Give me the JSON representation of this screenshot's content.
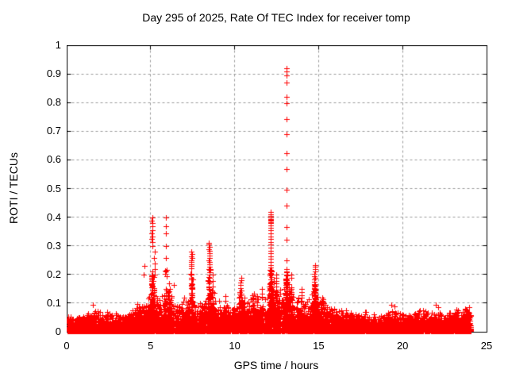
{
  "window": {
    "background": "#ffffff",
    "foreground": "#000000"
  },
  "chart_data": {
    "type": "scatter",
    "title": "Day 295 of 2025, Rate Of TEC Index for receiver tomp",
    "xlabel": "GPS time / hours",
    "ylabel": "ROTI / TECUs",
    "xlim": [
      0,
      25
    ],
    "ylim": [
      0,
      1
    ],
    "xticks": [
      0,
      5,
      10,
      15,
      20,
      25
    ],
    "xtick_labels": [
      "0",
      "5",
      "10",
      "15",
      "20",
      "25"
    ],
    "yticks": [
      0,
      0.1,
      0.2,
      0.3,
      0.4,
      0.5,
      0.6,
      0.7,
      0.8,
      0.9,
      1
    ],
    "ytick_labels": [
      "0",
      "0.1",
      "0.2",
      "0.3",
      "0.4",
      "0.5",
      "0.6",
      "0.7",
      "0.8",
      "0.9",
      "1"
    ],
    "grid": true,
    "grid_color": "#9a9a9a",
    "axis_color": "#000000",
    "legend": "none",
    "marker": {
      "shape": "plus",
      "color": "#ff0000",
      "size": 7
    },
    "data_time_range_hours": [
      0,
      24.05
    ],
    "noise": {
      "seed": 7,
      "points_per_hour": 320,
      "floor": 0.003,
      "envelope": [
        [
          0,
          0.05
        ],
        [
          0.3,
          0.035
        ],
        [
          0.8,
          0.045
        ],
        [
          1.2,
          0.055
        ],
        [
          1.6,
          0.065
        ],
        [
          2.0,
          0.05
        ],
        [
          2.4,
          0.055
        ],
        [
          2.8,
          0.05
        ],
        [
          3.2,
          0.045
        ],
        [
          3.6,
          0.055
        ],
        [
          4.0,
          0.065
        ],
        [
          4.4,
          0.075
        ],
        [
          4.8,
          0.09
        ],
        [
          5.1,
          0.13
        ],
        [
          5.4,
          0.09
        ],
        [
          5.7,
          0.1
        ],
        [
          6.0,
          0.12
        ],
        [
          6.3,
          0.09
        ],
        [
          6.6,
          0.08
        ],
        [
          7.0,
          0.085
        ],
        [
          7.4,
          0.1
        ],
        [
          7.7,
          0.075
        ],
        [
          8.0,
          0.08
        ],
        [
          8.3,
          0.1
        ],
        [
          8.6,
          0.12
        ],
        [
          9.0,
          0.075
        ],
        [
          9.4,
          0.1
        ],
        [
          9.7,
          0.06
        ],
        [
          10.0,
          0.07
        ],
        [
          10.35,
          0.11
        ],
        [
          10.7,
          0.08
        ],
        [
          11.0,
          0.1
        ],
        [
          11.3,
          0.09
        ],
        [
          11.6,
          0.11
        ],
        [
          11.9,
          0.1
        ],
        [
          12.15,
          0.15
        ],
        [
          12.5,
          0.13
        ],
        [
          12.8,
          0.1
        ],
        [
          13.05,
          0.16
        ],
        [
          13.35,
          0.13
        ],
        [
          13.7,
          0.09
        ],
        [
          13.95,
          0.11
        ],
        [
          14.3,
          0.08
        ],
        [
          14.75,
          0.12
        ],
        [
          15.1,
          0.09
        ],
        [
          15.5,
          0.07
        ],
        [
          16.0,
          0.06
        ],
        [
          16.5,
          0.055
        ],
        [
          17.0,
          0.05
        ],
        [
          17.5,
          0.055
        ],
        [
          18.0,
          0.05
        ],
        [
          18.5,
          0.045
        ],
        [
          19.0,
          0.05
        ],
        [
          19.5,
          0.06
        ],
        [
          20.0,
          0.045
        ],
        [
          20.5,
          0.05
        ],
        [
          21.0,
          0.06
        ],
        [
          21.5,
          0.05
        ],
        [
          22.0,
          0.055
        ],
        [
          22.5,
          0.05
        ],
        [
          23.0,
          0.055
        ],
        [
          23.5,
          0.06
        ],
        [
          23.95,
          0.065
        ],
        [
          24.05,
          0.05
        ]
      ]
    },
    "spikes": [
      {
        "t": 5.06,
        "points": [
          0.4,
          0.39,
          0.38,
          0.37,
          0.355,
          0.345,
          0.335,
          0.325,
          0.315,
          0.3,
          0.19,
          0.18,
          0.17,
          0.16
        ]
      },
      {
        "t": 5.2,
        "points": [
          0.28,
          0.26,
          0.24,
          0.22,
          0.2
        ]
      },
      {
        "t": 5.88,
        "points": [
          0.4,
          0.37,
          0.345,
          0.3,
          0.26
        ]
      },
      {
        "t": 6.1,
        "points": [
          0.17,
          0.15,
          0.13
        ]
      },
      {
        "t": 7.42,
        "points": [
          0.28,
          0.272,
          0.265,
          0.258,
          0.25,
          0.244,
          0.237,
          0.23,
          0.222,
          0.19,
          0.17,
          0.15,
          0.13
        ]
      },
      {
        "t": 8.46,
        "points": [
          0.312,
          0.305,
          0.298,
          0.29,
          0.283,
          0.276,
          0.268,
          0.26,
          0.252,
          0.244,
          0.236,
          0.228,
          0.22,
          0.21,
          0.2,
          0.19,
          0.18,
          0.17,
          0.16,
          0.15
        ]
      },
      {
        "t": 8.68,
        "points": [
          0.2,
          0.18,
          0.16,
          0.14,
          0.12
        ]
      },
      {
        "t": 10.35,
        "points": [
          0.19,
          0.182,
          0.174,
          0.165,
          0.155,
          0.145,
          0.135
        ]
      },
      {
        "t": 11.05,
        "points": [
          0.13,
          0.12,
          0.11
        ]
      },
      {
        "t": 11.6,
        "points": [
          0.15,
          0.135,
          0.12
        ]
      },
      {
        "t": 12.12,
        "points": [
          0.42,
          0.412,
          0.405,
          0.4,
          0.396,
          0.392,
          0.388,
          0.384,
          0.38,
          0.372,
          0.364,
          0.355,
          0.345,
          0.335,
          0.325,
          0.315,
          0.305,
          0.295,
          0.285,
          0.275,
          0.265,
          0.255,
          0.245,
          0.235,
          0.225,
          0.215
        ]
      },
      {
        "t": 12.45,
        "points": [
          0.2,
          0.19,
          0.18,
          0.17,
          0.16
        ]
      },
      {
        "t": 13.07,
        "points": [
          0.922,
          0.91,
          0.895,
          0.87,
          0.822,
          0.798,
          0.745,
          0.692,
          0.626,
          0.568,
          0.496,
          0.443,
          0.368,
          0.324,
          0.252,
          0.211,
          0.198,
          0.185,
          0.172,
          0.16
        ]
      },
      {
        "t": 13.35,
        "points": [
          0.202,
          0.19,
          0.152,
          0.14
        ]
      },
      {
        "t": 13.95,
        "points": [
          0.15,
          0.14,
          0.13,
          0.12
        ]
      },
      {
        "t": 14.74,
        "points": [
          0.235,
          0.228,
          0.22,
          0.212,
          0.204,
          0.196,
          0.19,
          0.183,
          0.175,
          0.167,
          0.158,
          0.15,
          0.14,
          0.13,
          0.12,
          0.11
        ]
      },
      {
        "t": 15.2,
        "points": [
          0.12,
          0.11,
          0.1
        ]
      }
    ],
    "outliers": [
      [
        0.05,
        0.055
      ],
      [
        0.08,
        0.048
      ],
      [
        1.55,
        0.095
      ],
      [
        4.58,
        0.2
      ],
      [
        4.63,
        0.23
      ],
      [
        6.35,
        0.165
      ],
      [
        9.45,
        0.125
      ],
      [
        15.9,
        0.08
      ],
      [
        16.6,
        0.075
      ],
      [
        17.8,
        0.07
      ],
      [
        19.3,
        0.095
      ],
      [
        19.5,
        0.09
      ],
      [
        21.0,
        0.075
      ],
      [
        21.95,
        0.095
      ],
      [
        22.1,
        0.088
      ],
      [
        23.2,
        0.08
      ]
    ]
  }
}
